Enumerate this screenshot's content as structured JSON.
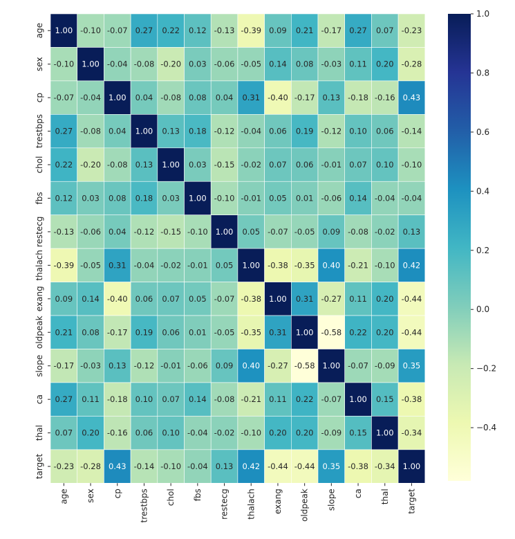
{
  "chart_data": {
    "type": "heatmap",
    "title": "",
    "xlabel": "",
    "ylabel": "",
    "x_labels": [
      "age",
      "sex",
      "cp",
      "trestbps",
      "chol",
      "fbs",
      "restecg",
      "thalach",
      "exang",
      "oldpeak",
      "slope",
      "ca",
      "thal",
      "target"
    ],
    "y_labels": [
      "age",
      "sex",
      "cp",
      "trestbps",
      "chol",
      "fbs",
      "restecg",
      "thalach",
      "exang",
      "oldpeak",
      "slope",
      "ca",
      "thal",
      "target"
    ],
    "values": [
      [
        1.0,
        -0.1,
        -0.07,
        0.27,
        0.22,
        0.12,
        -0.13,
        -0.39,
        0.09,
        0.21,
        -0.17,
        0.27,
        0.07,
        -0.23
      ],
      [
        -0.1,
        1.0,
        -0.04,
        -0.08,
        -0.2,
        0.03,
        -0.06,
        -0.05,
        0.14,
        0.08,
        -0.03,
        0.11,
        0.2,
        -0.28
      ],
      [
        -0.07,
        -0.04,
        1.0,
        0.04,
        -0.08,
        0.08,
        0.04,
        0.31,
        -0.4,
        -0.17,
        0.13,
        -0.18,
        -0.16,
        0.43
      ],
      [
        0.27,
        -0.08,
        0.04,
        1.0,
        0.13,
        0.18,
        -0.12,
        -0.04,
        0.06,
        0.19,
        -0.12,
        0.1,
        0.06,
        -0.14
      ],
      [
        0.22,
        -0.2,
        -0.08,
        0.13,
        1.0,
        0.03,
        -0.15,
        -0.02,
        0.07,
        0.06,
        -0.01,
        0.07,
        0.1,
        -0.1
      ],
      [
        0.12,
        0.03,
        0.08,
        0.18,
        0.03,
        1.0,
        -0.1,
        -0.01,
        0.05,
        0.01,
        -0.06,
        0.14,
        -0.04,
        -0.04
      ],
      [
        -0.13,
        -0.06,
        0.04,
        -0.12,
        -0.15,
        -0.1,
        1.0,
        0.05,
        -0.07,
        -0.05,
        0.09,
        -0.08,
        -0.02,
        0.13
      ],
      [
        -0.39,
        -0.05,
        0.31,
        -0.04,
        -0.02,
        -0.01,
        0.05,
        1.0,
        -0.38,
        -0.35,
        0.4,
        -0.21,
        -0.1,
        0.42
      ],
      [
        0.09,
        0.14,
        -0.4,
        0.06,
        0.07,
        0.05,
        -0.07,
        -0.38,
        1.0,
        0.31,
        -0.27,
        0.11,
        0.2,
        -0.44
      ],
      [
        0.21,
        0.08,
        -0.17,
        0.19,
        0.06,
        0.01,
        -0.05,
        -0.35,
        0.31,
        1.0,
        -0.58,
        0.22,
        0.2,
        -0.44
      ],
      [
        -0.17,
        -0.03,
        0.13,
        -0.12,
        -0.01,
        -0.06,
        0.09,
        0.4,
        -0.27,
        -0.58,
        1.0,
        -0.07,
        -0.09,
        0.35
      ],
      [
        0.27,
        0.11,
        -0.18,
        0.1,
        0.07,
        0.14,
        -0.08,
        -0.21,
        0.11,
        0.22,
        -0.07,
        1.0,
        0.15,
        -0.38
      ],
      [
        0.07,
        0.2,
        -0.16,
        0.06,
        0.1,
        -0.04,
        -0.02,
        -0.1,
        0.2,
        0.2,
        -0.09,
        0.15,
        1.0,
        -0.34
      ],
      [
        -0.23,
        -0.28,
        0.43,
        -0.14,
        -0.1,
        -0.04,
        0.13,
        0.42,
        -0.44,
        -0.44,
        0.35,
        -0.38,
        -0.34,
        1.0
      ]
    ],
    "colormap": "YlGnBu",
    "colormap_stops": [
      "#ffffd9",
      "#edf8b1",
      "#c7e9b4",
      "#7fcdbb",
      "#41b6c4",
      "#1d91c0",
      "#225ea8",
      "#253494",
      "#081d58"
    ],
    "vmin": -0.58,
    "vmax": 1.0,
    "value_format": "0.00",
    "colorbar": {
      "ticks": [
        1.0,
        0.8,
        0.6,
        0.4,
        0.2,
        0.0,
        -0.2,
        -0.4
      ],
      "tick_labels": [
        "1.0",
        "0.8",
        "0.6",
        "0.4",
        "0.2",
        "0.0",
        "−0.2",
        "−0.4"
      ],
      "placement": "right"
    },
    "cell_border_color": "#ffffff",
    "annotation_light_color": "#ffffff",
    "annotation_dark_color": "#262626",
    "grid": false,
    "legend": "colorbar-right"
  }
}
